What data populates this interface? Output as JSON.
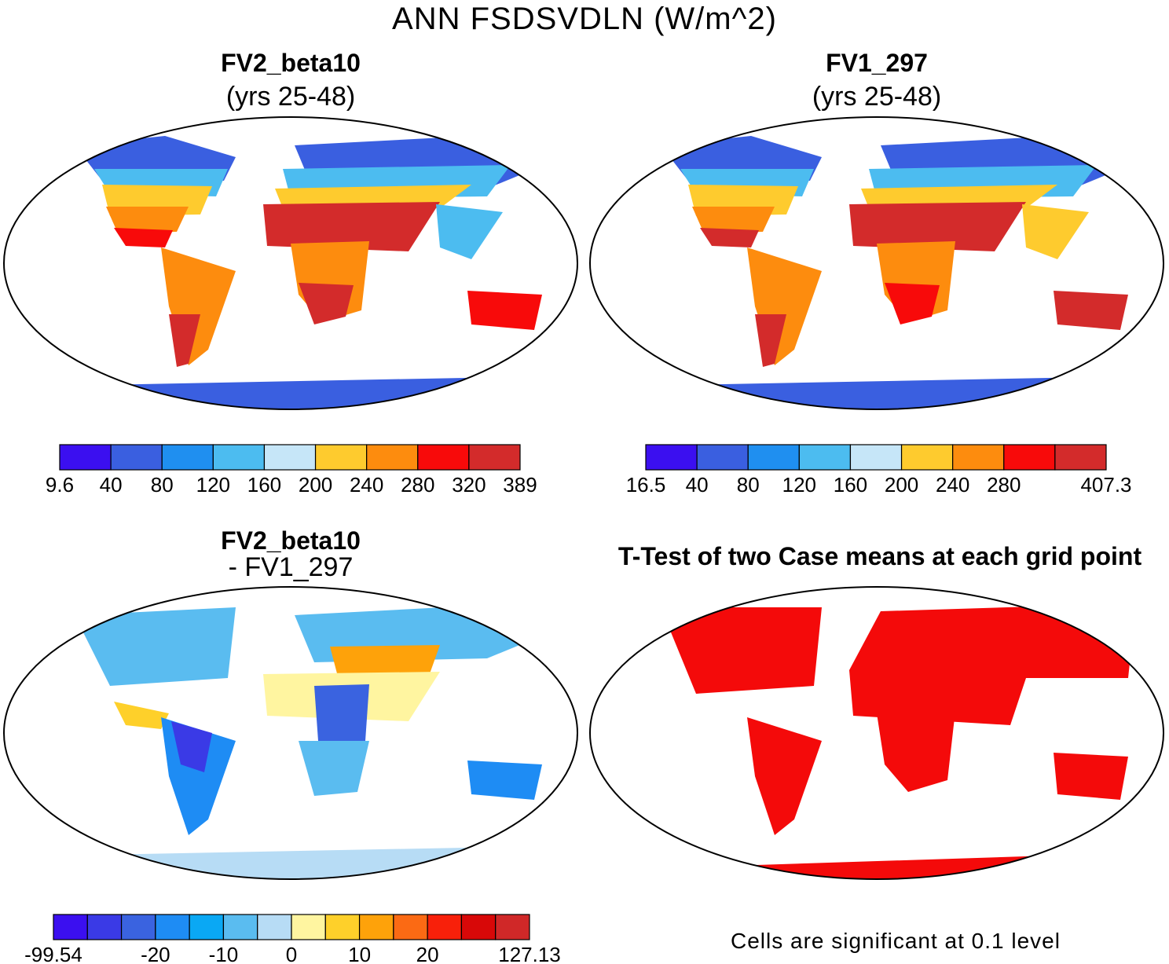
{
  "figure_title": "ANN FSDSVDLN (W/m^2)",
  "panels": [
    {
      "title": "FV2_beta10",
      "subtitle": "(yrs 25-48)",
      "colorbar": {
        "colors": [
          "#3b0ff0",
          "#3a5fe0",
          "#1f8ff0",
          "#4cbcf0",
          "#c6e6f8",
          "#fecb2e",
          "#fd8c0e",
          "#f80a0a",
          "#d32b2b"
        ],
        "labels": [
          "9.6",
          "40",
          "80",
          "120",
          "160",
          "200",
          "240",
          "280",
          "320",
          "389"
        ]
      }
    },
    {
      "title": "FV1_297",
      "subtitle": "(yrs 25-48)",
      "colorbar": {
        "colors": [
          "#3b0ff0",
          "#3a5fe0",
          "#1f8ff0",
          "#4cbcf0",
          "#c6e6f8",
          "#fecb2e",
          "#fd8c0e",
          "#f80a0a",
          "#d32b2b"
        ],
        "labels": [
          "16.5",
          "40",
          "80",
          "120",
          "160",
          "200",
          "240",
          "280",
          "",
          "407.3"
        ]
      }
    },
    {
      "title": "FV2_beta10",
      "subtitle": "- FV1_297",
      "colorbar": {
        "colors": [
          "#3b0ff0",
          "#3a3ae6",
          "#3a63e0",
          "#1e8cf4",
          "#0aa8f4",
          "#5abcf0",
          "#b7dcf5",
          "#fff5a0",
          "#fed02a",
          "#fea20a",
          "#fb6a14",
          "#f8200a",
          "#d80808",
          "#d02828"
        ],
        "labels": [
          "-99.54",
          "",
          "",
          "-20",
          "",
          "-10",
          "",
          "0",
          "",
          "10",
          "",
          "20",
          "",
          "",
          "127.13"
        ]
      }
    },
    {
      "title": "T-Test of two Case means at each grid point",
      "note": "Cells are significant at 0.1 level",
      "fill_color": "#f40a0a"
    }
  ]
}
